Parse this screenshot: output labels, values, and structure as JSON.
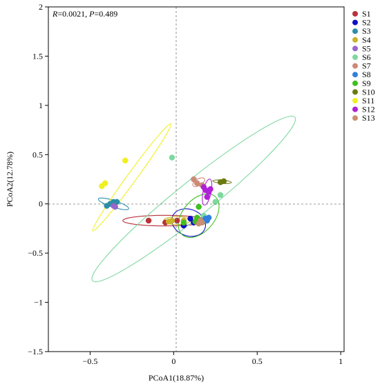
{
  "chart_data": {
    "type": "scatter",
    "title": "",
    "xlabel": "PCoA1(18.87%)",
    "ylabel": "PCoA2(12.78%)",
    "xlim": [
      -0.75,
      1.02
    ],
    "ylim": [
      -1.5,
      2.0
    ],
    "xticks": [
      -0.5,
      0,
      0.5,
      1
    ],
    "xtick_labels": [
      "−0.5",
      "0",
      "0.5",
      "1"
    ],
    "yticks": [
      -1.5,
      -1,
      -0.5,
      0,
      0.5,
      1,
      1.5,
      2
    ],
    "ytick_labels": [
      "−1.5",
      "−1",
      "−0.5",
      "0",
      "0.5",
      "1",
      "1.5",
      "2"
    ],
    "grid": false,
    "reference_lines": {
      "x": 0,
      "y": 0,
      "style": "dashed"
    },
    "annotation": {
      "R_label": "R",
      "R_value": "=0.0021, ",
      "P_label": "P",
      "P_value": "=0.489"
    },
    "legend_position": "right",
    "series": [
      {
        "name": "S1",
        "color": "#b8323a",
        "points": [
          [
            -0.15,
            -0.17
          ],
          [
            -0.05,
            -0.19
          ],
          [
            0.02,
            -0.17
          ]
        ],
        "ellipse": {
          "cx": -0.05,
          "cy": -0.17,
          "rx": 0.32,
          "ry": 0.04,
          "angle": 0
        }
      },
      {
        "name": "S2",
        "color": "#1010c8",
        "points": [
          [
            0.06,
            -0.22
          ],
          [
            0.1,
            -0.15
          ],
          [
            0.18,
            -0.18
          ],
          [
            0.12,
            -0.19
          ]
        ],
        "ellipse": {
          "cx": 0.09,
          "cy": -0.19,
          "rx": 0.13,
          "ry": 0.1,
          "angle": 20
        }
      },
      {
        "name": "S3",
        "color": "#2a8fa8",
        "points": [
          [
            -0.4,
            -0.02
          ],
          [
            -0.36,
            0.02
          ],
          [
            -0.34,
            0.02
          ],
          [
            -0.38,
            0.0
          ]
        ],
        "ellipse": {
          "cx": -0.36,
          "cy": 0.0,
          "rx": 0.12,
          "ry": 0.025,
          "angle": 18
        }
      },
      {
        "name": "S4",
        "color": "#c8b428",
        "points": [
          [
            -0.01,
            -0.17
          ],
          [
            0.06,
            -0.17
          ],
          [
            -0.03,
            -0.18
          ]
        ],
        "ellipse": {
          "cx": 0.02,
          "cy": -0.17,
          "rx": 0.1,
          "ry": 0.03,
          "angle": 0
        }
      },
      {
        "name": "S5",
        "color": "#9966cc",
        "points": [
          [
            -0.36,
            -0.02
          ],
          [
            -0.35,
            -0.03
          ]
        ],
        "ellipse": null
      },
      {
        "name": "S6",
        "color": "#7ed8a0",
        "points": [
          [
            -0.01,
            0.47
          ],
          [
            0.28,
            0.09
          ],
          [
            0.25,
            0.02
          ],
          [
            0.18,
            -0.12
          ]
        ],
        "ellipse": {
          "cx": 0.12,
          "cy": 0.05,
          "rx": 0.98,
          "ry": 0.13,
          "angle": -39
        }
      },
      {
        "name": "S7",
        "color": "#cc8a78",
        "points": [
          [
            0.12,
            0.25
          ],
          [
            0.14,
            0.21
          ],
          [
            0.17,
            0.19
          ]
        ],
        "ellipse": {
          "cx": 0.15,
          "cy": 0.22,
          "rx": 0.05,
          "ry": 0.025,
          "angle": -30
        }
      },
      {
        "name": "S8",
        "color": "#3080e0",
        "points": [
          [
            0.19,
            -0.15
          ],
          [
            0.2,
            -0.17
          ],
          [
            0.18,
            -0.18
          ],
          [
            0.21,
            -0.14
          ]
        ],
        "ellipse": null
      },
      {
        "name": "S9",
        "color": "#40c020",
        "points": [
          [
            0.14,
            -0.14
          ],
          [
            0.15,
            -0.03
          ],
          [
            0.13,
            -0.18
          ],
          [
            0.06,
            -0.19
          ]
        ],
        "ellipse": {
          "cx": 0.15,
          "cy": -0.12,
          "rx": 0.12,
          "ry": 0.19,
          "angle": 40
        }
      },
      {
        "name": "S10",
        "color": "#6b7a10",
        "points": [
          [
            0.28,
            0.22
          ],
          [
            0.3,
            0.23
          ]
        ],
        "ellipse": {
          "cx": 0.29,
          "cy": 0.225,
          "rx": 0.07,
          "ry": 0.012,
          "angle": 5
        }
      },
      {
        "name": "S11",
        "color": "#f0f020",
        "points": [
          [
            -0.43,
            0.18
          ],
          [
            -0.41,
            0.21
          ],
          [
            -0.29,
            0.44
          ]
        ],
        "ellipse": {
          "cx": -0.25,
          "cy": 0.27,
          "rx": 0.5,
          "ry": 0.035,
          "angle": -54
        }
      },
      {
        "name": "S12",
        "color": "#b020d8",
        "points": [
          [
            0.19,
            0.14
          ],
          [
            0.21,
            0.12
          ],
          [
            0.2,
            0.07
          ],
          [
            0.22,
            0.15
          ],
          [
            0.18,
            0.17
          ]
        ],
        "ellipse": {
          "cx": 0.2,
          "cy": 0.12,
          "rx": 0.1,
          "ry": 0.03,
          "angle": -78
        }
      },
      {
        "name": "S13",
        "color": "#c89070",
        "points": [
          [
            0.15,
            -0.2
          ],
          [
            0.16,
            -0.17
          ],
          [
            0.17,
            -0.19
          ]
        ],
        "ellipse": null
      }
    ]
  }
}
